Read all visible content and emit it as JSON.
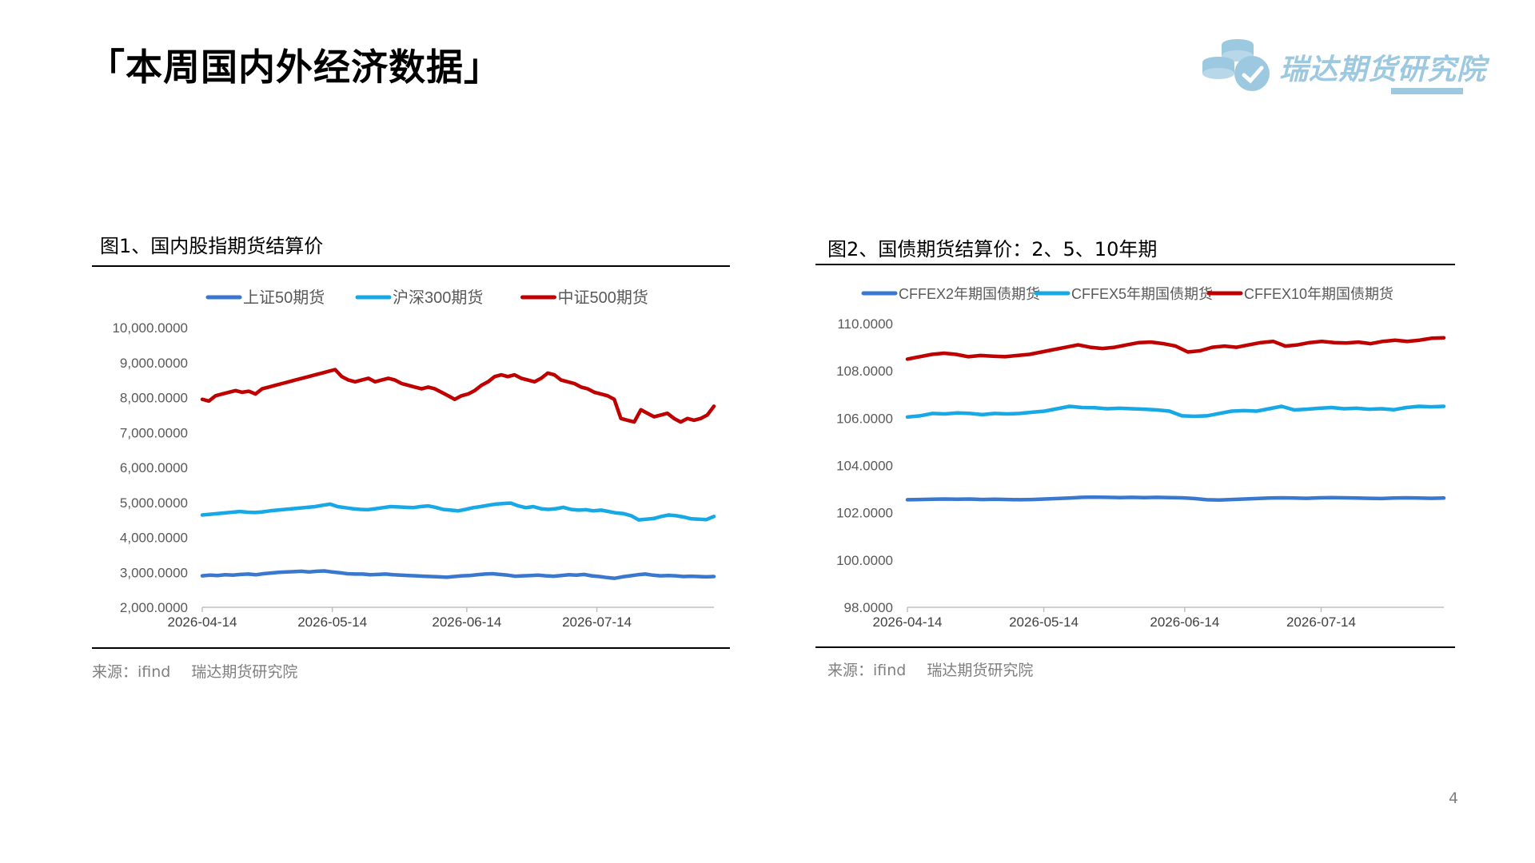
{
  "page": {
    "title": "「本周国内外经济数据」",
    "page_number": "4",
    "logo_text": "瑞达期货研究院",
    "logo_color": "#9cc8e0"
  },
  "charts": [
    {
      "title": "图1、国内股指期货结算价",
      "source_label": "来源：ifind",
      "source_org": "瑞达期货研究院"
    },
    {
      "title": "图2、国债期货结算价：2、5、10年期",
      "source_label": "来源：ifind",
      "source_org": "瑞达期货研究院"
    }
  ],
  "chart_data": [
    {
      "type": "line",
      "title": "图1、国内股指期货结算价",
      "x_start": "2026-04-14",
      "x_end": "2026-08-10",
      "x_ticks": [
        "2026-04-14",
        "2026-05-14",
        "2026-06-14",
        "2026-07-14"
      ],
      "ylim": [
        2000,
        10000
      ],
      "y_ticks": [
        "2,000.0000",
        "3,000.0000",
        "4,000.0000",
        "5,000.0000",
        "6,000.0000",
        "7,000.0000",
        "8,000.0000",
        "9,000.0000",
        "10,000.0000"
      ],
      "legend": "top",
      "grid": false,
      "series": [
        {
          "name": "上证50期货",
          "color": "#3a78d0",
          "values": [
            2900,
            2920,
            2910,
            2930,
            2920,
            2940,
            2950,
            2930,
            2960,
            2980,
            3000,
            3010,
            3020,
            3030,
            3010,
            3030,
            3040,
            3010,
            2990,
            2960,
            2950,
            2950,
            2930,
            2940,
            2950,
            2930,
            2920,
            2910,
            2900,
            2890,
            2880,
            2870,
            2860,
            2880,
            2900,
            2910,
            2930,
            2950,
            2960,
            2940,
            2920,
            2890,
            2900,
            2910,
            2920,
            2900,
            2890,
            2910,
            2930,
            2920,
            2940,
            2900,
            2880,
            2850,
            2830,
            2870,
            2900,
            2930,
            2950,
            2920,
            2900,
            2910,
            2900,
            2880,
            2890,
            2880,
            2870,
            2880
          ]
        },
        {
          "name": "沪深300期货",
          "color": "#17a8e6",
          "values": [
            4640,
            4660,
            4680,
            4700,
            4720,
            4740,
            4720,
            4710,
            4730,
            4760,
            4780,
            4800,
            4820,
            4840,
            4860,
            4880,
            4920,
            4950,
            4880,
            4850,
            4820,
            4800,
            4790,
            4820,
            4850,
            4880,
            4870,
            4860,
            4850,
            4880,
            4900,
            4860,
            4800,
            4780,
            4760,
            4800,
            4850,
            4880,
            4920,
            4950,
            4970,
            4980,
            4900,
            4850,
            4880,
            4820,
            4800,
            4820,
            4860,
            4800,
            4780,
            4790,
            4760,
            4780,
            4740,
            4700,
            4680,
            4620,
            4500,
            4520,
            4540,
            4600,
            4640,
            4620,
            4580,
            4530,
            4520,
            4510,
            4600
          ]
        },
        {
          "name": "中证500期货",
          "color": "#c00000",
          "values": [
            7950,
            7900,
            8050,
            8100,
            8150,
            8200,
            8150,
            8180,
            8100,
            8250,
            8300,
            8350,
            8400,
            8450,
            8500,
            8550,
            8600,
            8650,
            8700,
            8750,
            8800,
            8600,
            8500,
            8450,
            8500,
            8550,
            8450,
            8500,
            8550,
            8500,
            8400,
            8350,
            8300,
            8250,
            8300,
            8250,
            8150,
            8050,
            7950,
            8050,
            8100,
            8200,
            8350,
            8450,
            8600,
            8650,
            8600,
            8650,
            8550,
            8500,
            8450,
            8550,
            8700,
            8650,
            8500,
            8450,
            8400,
            8300,
            8250,
            8150,
            8100,
            8050,
            7950,
            7400,
            7350,
            7300,
            7650,
            7550,
            7450,
            7500,
            7550,
            7400,
            7300,
            7400,
            7350,
            7400,
            7500,
            7750
          ]
        }
      ]
    },
    {
      "type": "line",
      "title": "图2、国债期货结算价：2、5、10年期",
      "x_start": "2026-04-14",
      "x_end": "2026-08-10",
      "x_ticks": [
        "2026-04-14",
        "2026-05-14",
        "2026-06-14",
        "2026-07-14"
      ],
      "ylim": [
        98,
        110
      ],
      "y_ticks": [
        "98.0000",
        "100.0000",
        "102.0000",
        "104.0000",
        "106.0000",
        "108.0000",
        "110.0000"
      ],
      "legend": "top",
      "grid": false,
      "series": [
        {
          "name": "CFFEX2年期国债期货",
          "color": "#3a78d0",
          "values": [
            102.55,
            102.56,
            102.57,
            102.58,
            102.57,
            102.58,
            102.56,
            102.57,
            102.56,
            102.55,
            102.56,
            102.58,
            102.6,
            102.62,
            102.65,
            102.66,
            102.65,
            102.64,
            102.65,
            102.64,
            102.65,
            102.64,
            102.63,
            102.6,
            102.55,
            102.54,
            102.56,
            102.58,
            102.6,
            102.62,
            102.63,
            102.62,
            102.61,
            102.63,
            102.64,
            102.63,
            102.62,
            102.61,
            102.6,
            102.62,
            102.63,
            102.62,
            102.61,
            102.62
          ]
        },
        {
          "name": "CFFEX5年期国债期货",
          "color": "#17a8e6",
          "values": [
            106.05,
            106.1,
            106.2,
            106.18,
            106.22,
            106.2,
            106.15,
            106.2,
            106.18,
            106.2,
            106.25,
            106.3,
            106.4,
            106.5,
            106.45,
            106.44,
            106.4,
            106.42,
            106.4,
            106.38,
            106.35,
            106.3,
            106.1,
            106.08,
            106.1,
            106.2,
            106.3,
            106.32,
            106.3,
            106.4,
            106.5,
            106.35,
            106.38,
            106.42,
            106.45,
            106.4,
            106.42,
            106.38,
            106.4,
            106.36,
            106.45,
            106.5,
            106.48,
            106.5
          ]
        },
        {
          "name": "CFFEX10年期国债期货",
          "color": "#c00000",
          "values": [
            108.5,
            108.6,
            108.7,
            108.75,
            108.7,
            108.6,
            108.65,
            108.62,
            108.6,
            108.65,
            108.7,
            108.8,
            108.9,
            109.0,
            109.1,
            109.0,
            108.95,
            109.0,
            109.1,
            109.2,
            109.22,
            109.15,
            109.05,
            108.8,
            108.85,
            109.0,
            109.05,
            109.0,
            109.1,
            109.2,
            109.25,
            109.05,
            109.1,
            109.2,
            109.25,
            109.2,
            109.18,
            109.22,
            109.15,
            109.25,
            109.3,
            109.25,
            109.3,
            109.38,
            109.4
          ]
        }
      ]
    }
  ]
}
